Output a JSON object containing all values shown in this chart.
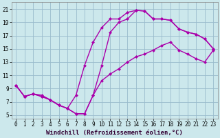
{
  "xlabel": "Windchill (Refroidissement éolien,°C)",
  "ylabel": "",
  "bg_color": "#cce8ec",
  "line_color": "#aa00aa",
  "grid_color": "#99bbcc",
  "xlim": [
    -0.5,
    23.5
  ],
  "ylim": [
    4.5,
    22
  ],
  "xticks": [
    0,
    1,
    2,
    3,
    4,
    5,
    6,
    7,
    8,
    9,
    10,
    11,
    12,
    13,
    14,
    15,
    16,
    17,
    18,
    19,
    20,
    21,
    22,
    23
  ],
  "yticks": [
    5,
    7,
    9,
    11,
    13,
    15,
    17,
    19,
    21
  ],
  "line1_x": [
    0,
    1,
    2,
    3,
    4,
    5,
    6,
    7,
    8,
    9,
    10,
    11,
    12,
    13,
    14,
    15,
    16,
    17,
    18,
    19,
    20,
    21,
    22,
    23
  ],
  "line1_y": [
    9.5,
    7.8,
    8.2,
    8.0,
    7.3,
    6.5,
    6.0,
    8.0,
    12.5,
    16.0,
    18.2,
    19.5,
    19.5,
    20.5,
    20.8,
    20.7,
    19.5,
    19.5,
    19.3,
    18.0,
    17.5,
    17.2,
    16.5,
    15.0
  ],
  "line2_x": [
    0,
    1,
    2,
    3,
    4,
    5,
    6,
    7,
    8,
    9,
    10,
    11,
    12,
    13,
    14,
    15,
    16,
    17,
    18,
    19,
    20,
    21,
    22,
    23
  ],
  "line2_y": [
    9.5,
    7.8,
    8.2,
    7.8,
    7.3,
    6.5,
    6.0,
    5.2,
    5.2,
    8.0,
    12.5,
    17.5,
    19.0,
    19.5,
    20.8,
    20.7,
    19.5,
    19.5,
    19.3,
    18.0,
    17.5,
    17.2,
    16.5,
    15.0
  ],
  "line3_x": [
    0,
    1,
    2,
    3,
    4,
    5,
    6,
    7,
    8,
    9,
    10,
    11,
    12,
    13,
    14,
    15,
    16,
    17,
    18,
    19,
    20,
    21,
    22,
    23
  ],
  "line3_y": [
    9.5,
    7.8,
    8.2,
    7.8,
    7.3,
    6.5,
    6.0,
    5.2,
    5.2,
    8.0,
    10.2,
    11.2,
    12.0,
    13.0,
    13.8,
    14.2,
    14.8,
    15.5,
    16.0,
    14.8,
    14.2,
    13.5,
    13.0,
    14.8
  ],
  "marker": "D",
  "markersize": 2.5,
  "linewidth": 1.0,
  "tick_fontsize": 5.5,
  "label_fontsize": 6.5
}
